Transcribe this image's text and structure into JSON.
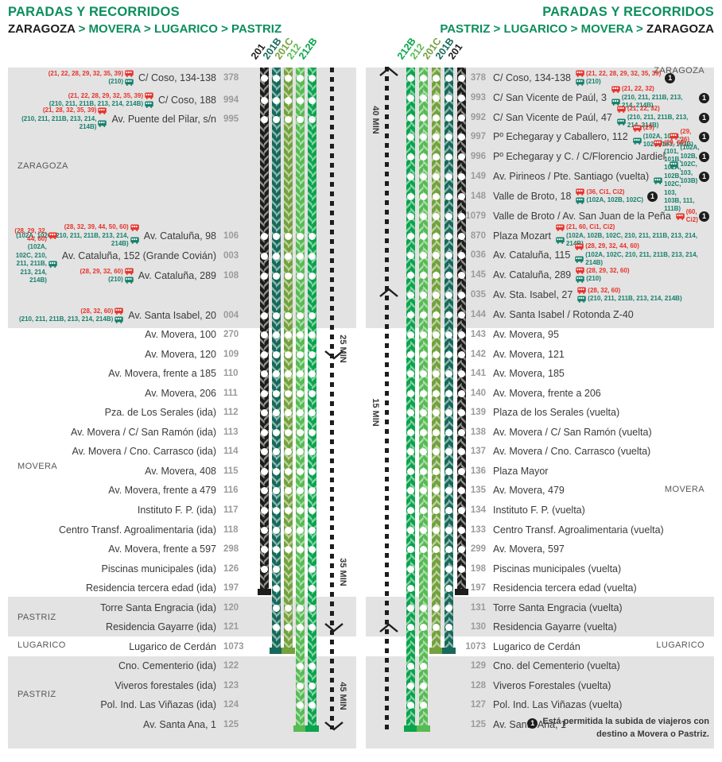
{
  "colors": {
    "brand_green": "#0c8e5e",
    "ink": "#1d1d1b",
    "red": "#e6332a",
    "conn_teal": "#17806b",
    "band_gray": "#e3e3e3",
    "code_gray": "#9b9b9a"
  },
  "footnote": {
    "badge": "1",
    "text": "Está permitida la subida de viajeros con destino a Movera o Pastriz."
  },
  "left_panel": {
    "title": "PARADAS Y RECORRIDOS",
    "separator": ">",
    "route_parts": [
      {
        "label": "ZARAGOZA",
        "dark": true
      },
      {
        "label": "MOVERA",
        "dark": false
      },
      {
        "label": "LUGARICO",
        "dark": false
      },
      {
        "label": "PASTRIZ",
        "dark": false
      }
    ],
    "columns": [
      {
        "id": "201",
        "color": "#1d1d1b"
      },
      {
        "id": "201B",
        "color": "#176a5b"
      },
      {
        "id": "201C",
        "color": "#74a13e"
      },
      {
        "id": "212",
        "color": "#57bb54"
      },
      {
        "id": "212B",
        "color": "#0aa44d"
      }
    ],
    "lines": [
      {
        "id": "201",
        "terminal_stop": 20,
        "skip": []
      },
      {
        "id": "201B",
        "terminal_stop": 23,
        "skip": []
      },
      {
        "id": "201C",
        "terminal_stop": 23,
        "skip": [
          19,
          20
        ]
      },
      {
        "id": "212",
        "terminal_stop": 27,
        "skip": [
          19,
          20,
          23
        ]
      },
      {
        "id": "212B",
        "terminal_stop": 27,
        "skip": [
          23
        ]
      }
    ],
    "time_segments": [
      {
        "label": "25 MIN"
      },
      {
        "label": "35 MIN"
      },
      {
        "label": "45 MIN"
      }
    ],
    "regions": [
      "ZARAGOZA",
      "MOVERA",
      "PASTRIZ",
      "LUGARICO",
      "PASTRIZ"
    ],
    "stops": [
      {
        "code": "378",
        "name": "C/ Coso, 134-138",
        "red": "(21, 22, 28, 29, 32, 35, 39)",
        "green": "(210)",
        "badge": false
      },
      {
        "code": "994",
        "name": "C/ Coso, 188",
        "red": "(21, 22, 28, 29, 32, 35, 39)",
        "green": "(210, 211, 211B, 213, 214, 214B)",
        "badge": false
      },
      {
        "code": "995",
        "name": "Av. Puente del Pilar, s/n",
        "red": "(21, 28, 32, 35, 39)",
        "green": "(210, 211, 211B, 213, 214, 214B)",
        "badge": false
      },
      {
        "code": "106",
        "name": "Av. Cataluña, 98",
        "red": "(28, 32, 39, 44, 50, 60)",
        "green": "(102A, 102C, 210, 211, 211B, 213, 214, 214B)",
        "badge": false
      },
      {
        "code": "003",
        "name": "Av. Cataluña, 152 (Grande Covián)",
        "red": "(28, 29, 32, 44, 60)",
        "green": "(102A, 102C, 210, 211, 211B, 213, 214, 214B)",
        "badge": false
      },
      {
        "code": "108",
        "name": "Av. Cataluña, 289",
        "red": "(28, 29, 32, 60)",
        "green": "(210)",
        "badge": false
      },
      {
        "code": "004",
        "name": "Av. Santa Isabel, 20",
        "red": "(28, 32, 60)",
        "green": "(210, 211, 211B, 213, 214, 214B)",
        "badge": false
      },
      {
        "code": "270",
        "name": "Av. Movera, 100",
        "red": "",
        "green": "",
        "badge": false
      },
      {
        "code": "109",
        "name": "Av. Movera, 120",
        "red": "",
        "green": "",
        "badge": false
      },
      {
        "code": "110",
        "name": "Av. Movera, frente a 185",
        "red": "",
        "green": "",
        "badge": false
      },
      {
        "code": "111",
        "name": "Av. Movera, 206",
        "red": "",
        "green": "",
        "badge": false
      },
      {
        "code": "112",
        "name": "Pza. de Los Serales (ida)",
        "red": "",
        "green": "",
        "badge": false
      },
      {
        "code": "113",
        "name": "Av. Movera / C/ San Ramón (ida)",
        "red": "",
        "green": "",
        "badge": false
      },
      {
        "code": "114",
        "name": "Av. Movera / Cno. Carrasco (ida)",
        "red": "",
        "green": "",
        "badge": false
      },
      {
        "code": "115",
        "name": "Av. Movera, 408",
        "red": "",
        "green": "",
        "badge": false
      },
      {
        "code": "116",
        "name": "Av. Movera, frente a 479",
        "red": "",
        "green": "",
        "badge": false
      },
      {
        "code": "117",
        "name": "Instituto F. P. (ida)",
        "red": "",
        "green": "",
        "badge": false
      },
      {
        "code": "118",
        "name": "Centro Transf. Agroalimentaria (ida)",
        "red": "",
        "green": "",
        "badge": false
      },
      {
        "code": "298",
        "name": "Av. Movera, frente a 597",
        "red": "",
        "green": "",
        "badge": false
      },
      {
        "code": "126",
        "name": "Piscinas municipales (ida)",
        "red": "",
        "green": "",
        "badge": false
      },
      {
        "code": "197",
        "name": "Residencia tercera edad (ida)",
        "red": "",
        "green": "",
        "badge": false
      },
      {
        "code": "120",
        "name": "Torre Santa Engracia (ida)",
        "red": "",
        "green": "",
        "badge": false
      },
      {
        "code": "121",
        "name": "Residencia Gayarre (ida)",
        "red": "",
        "green": "",
        "badge": false
      },
      {
        "code": "1073",
        "name": "Lugarico de Cerdán",
        "red": "",
        "green": "",
        "badge": false
      },
      {
        "code": "122",
        "name": "Cno. Cementerio (ida)",
        "red": "",
        "green": "",
        "badge": false
      },
      {
        "code": "123",
        "name": "Viveros forestales (ida)",
        "red": "",
        "green": "",
        "badge": false
      },
      {
        "code": "124",
        "name": "Pol. Ind. Las Viñazas (ida)",
        "red": "",
        "green": "",
        "badge": false
      },
      {
        "code": "125",
        "name": "Av. Santa Ana, 1",
        "red": "",
        "green": "",
        "badge": false
      }
    ]
  },
  "right_panel": {
    "title": "PARADAS Y RECORRIDOS",
    "separator": ">",
    "route_parts": [
      {
        "label": "PASTRIZ",
        "dark": false
      },
      {
        "label": "LUGARICO",
        "dark": false
      },
      {
        "label": "MOVERA",
        "dark": false
      },
      {
        "label": "ZARAGOZA",
        "dark": true
      }
    ],
    "columns": [
      {
        "id": "212B",
        "color": "#0aa44d"
      },
      {
        "id": "212",
        "color": "#57bb54"
      },
      {
        "id": "201C",
        "color": "#74a13e"
      },
      {
        "id": "201B",
        "color": "#176a5b"
      },
      {
        "id": "201",
        "color": "#1d1d1b"
      }
    ],
    "lines": [
      {
        "id": "212B",
        "terminal_stop": 33,
        "skip": [
          29
        ]
      },
      {
        "id": "212",
        "terminal_stop": 33,
        "skip": [
          25,
          26,
          29
        ]
      },
      {
        "id": "201C",
        "terminal_stop": 29,
        "skip": [
          25,
          26
        ]
      },
      {
        "id": "201B",
        "terminal_stop": 29,
        "skip": []
      },
      {
        "id": "201",
        "terminal_stop": 26,
        "skip": []
      }
    ],
    "time_segments": [
      {
        "label": "40 MIN"
      },
      {
        "label": "15 MIN"
      }
    ],
    "regions": [
      "ZARAGOZA",
      "MOVERA",
      "LUGARICO"
    ],
    "stops": [
      {
        "code": "378",
        "name": "C/ Coso, 134-138",
        "red": "(21, 22, 28, 29, 32, 35, 39)",
        "green": "(210)",
        "badge": true
      },
      {
        "code": "993",
        "name": "C/ San Vicente de Paúl, 3",
        "red": "(21, 22, 32)",
        "green": "(210, 211, 211B, 213, 214, 214B)",
        "badge": true
      },
      {
        "code": "992",
        "name": "C/ San Vicente de Paúl, 47",
        "red": "(21, 22, 32)",
        "green": "(210, 211, 211B, 213, 214, 214B)",
        "badge": true
      },
      {
        "code": "997",
        "name": "Pº Echegaray y Caballero, 112",
        "red": "(29)",
        "green": "(102A, 102B, 102C, 103, 103B)",
        "badge": true
      },
      {
        "code": "996",
        "name": "Pº Echegaray y C. / C/Florencio Jardiel",
        "red": "(29, 36)",
        "green": "(102A, 102B, 102C, 103, 103B)",
        "badge": true
      },
      {
        "code": "149",
        "name": "Av. Pirineos / Pte. Santiago (vuelta)",
        "red": "(29, 60)",
        "green": "(101, 101B, 102A, 102B, 102C, 103, 103B, 111, 111B)",
        "badge": true
      },
      {
        "code": "148",
        "name": "Valle de Broto, 18",
        "red": "(36, Ci1, Ci2)",
        "green": "(102A, 102B, 102C)",
        "badge": true
      },
      {
        "code": "1079",
        "name": "Valle de Broto / Av. San Juan de la Peña",
        "red": "(60, Ci2)",
        "green": "",
        "badge": true
      },
      {
        "code": "870",
        "name": "Plaza Mozart",
        "red": "(21, 60, Ci1, Ci2)",
        "green": "(102A, 102B, 102C, 210, 211, 211B, 213, 214, 214B)",
        "badge": false
      },
      {
        "code": "036",
        "name": "Av. Cataluña, 115",
        "red": "(28, 29, 32, 44, 60)",
        "green": "(102A, 102C, 210, 211, 211B, 213, 214, 214B)",
        "badge": false
      },
      {
        "code": "145",
        "name": "Av. Cataluña, 289",
        "red": "(28, 29, 32, 60)",
        "green": "(210)",
        "badge": false
      },
      {
        "code": "035",
        "name": "Av. Sta. Isabel, 27",
        "red": "(28, 32, 60)",
        "green": "(210, 211, 211B, 213, 214, 214B)",
        "badge": false
      },
      {
        "code": "144",
        "name": "Av. Santa Isabel / Rotonda Z-40",
        "red": "",
        "green": "",
        "badge": false
      },
      {
        "code": "143",
        "name": "Av. Movera, 95",
        "red": "",
        "green": "",
        "badge": false
      },
      {
        "code": "142",
        "name": "Av. Movera, 121",
        "red": "",
        "green": "",
        "badge": false
      },
      {
        "code": "141",
        "name": "Av. Movera, 185",
        "red": "",
        "green": "",
        "badge": false
      },
      {
        "code": "140",
        "name": "Av. Movera, frente a 206",
        "red": "",
        "green": "",
        "badge": false
      },
      {
        "code": "139",
        "name": "Plaza de los Serales (vuelta)",
        "red": "",
        "green": "",
        "badge": false
      },
      {
        "code": "138",
        "name": "Av. Movera / C/ San Ramón (vuelta)",
        "red": "",
        "green": "",
        "badge": false
      },
      {
        "code": "137",
        "name": "Av. Movera / Cno. Carrasco (vuelta)",
        "red": "",
        "green": "",
        "badge": false
      },
      {
        "code": "136",
        "name": "Plaza Mayor",
        "red": "",
        "green": "",
        "badge": false
      },
      {
        "code": "135",
        "name": "Av. Movera, 479",
        "red": "",
        "green": "",
        "badge": false
      },
      {
        "code": "134",
        "name": "Instituto F. P. (vuelta)",
        "red": "",
        "green": "",
        "badge": false
      },
      {
        "code": "133",
        "name": "Centro Transf. Agroalimentaria (vuelta)",
        "red": "",
        "green": "",
        "badge": false
      },
      {
        "code": "299",
        "name": "Av. Movera, 597",
        "red": "",
        "green": "",
        "badge": false
      },
      {
        "code": "198",
        "name": "Piscinas municipales (vuelta)",
        "red": "",
        "green": "",
        "badge": false
      },
      {
        "code": "197",
        "name": "Residencia tercera edad (vuelta)",
        "red": "",
        "green": "",
        "badge": false
      },
      {
        "code": "131",
        "name": "Torre Santa Engracia (vuelta)",
        "red": "",
        "green": "",
        "badge": false
      },
      {
        "code": "130",
        "name": "Residencia Gayarre (vuelta)",
        "red": "",
        "green": "",
        "badge": false
      },
      {
        "code": "1073",
        "name": "Lugarico de Cerdán",
        "red": "",
        "green": "",
        "badge": false
      },
      {
        "code": "129",
        "name": "Cno. del Cementerio (vuelta)",
        "red": "",
        "green": "",
        "badge": false
      },
      {
        "code": "128",
        "name": "Viveros Forestales (vuelta)",
        "red": "",
        "green": "",
        "badge": false
      },
      {
        "code": "127",
        "name": "Pol. Ind. Las Viñazas (vuelta)",
        "red": "",
        "green": "",
        "badge": false
      },
      {
        "code": "125",
        "name": "Av. Santa Ana, 1",
        "red": "",
        "green": "",
        "badge": false
      }
    ]
  }
}
